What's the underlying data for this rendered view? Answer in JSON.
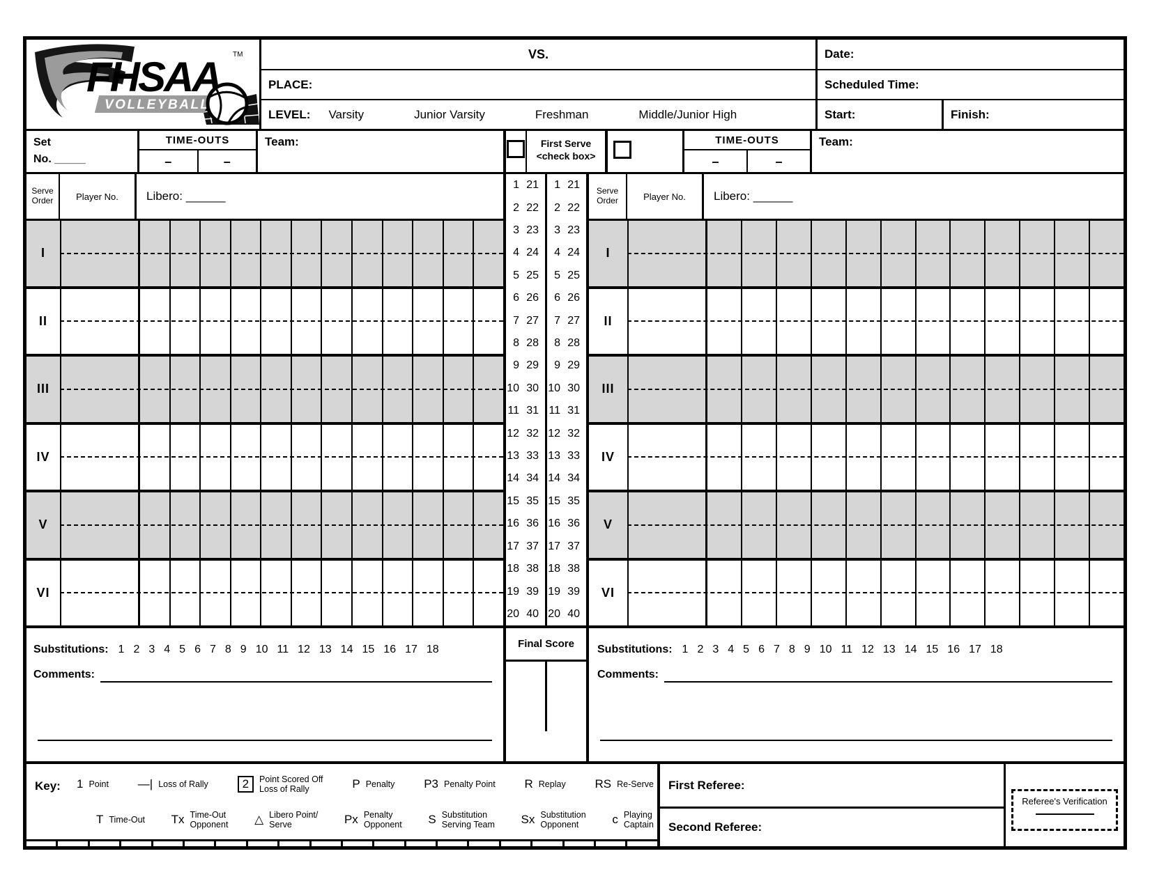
{
  "header": {
    "logo_brand": "FHSAA",
    "logo_tm": "TM",
    "logo_sub": "VOLLEYBALL",
    "vs_label": "VS.",
    "place_label": "PLACE:",
    "level_label": "LEVEL:",
    "level_options": [
      "Varsity",
      "Junior Varsity",
      "Freshman",
      "Middle/Junior High"
    ],
    "date_label": "Date:",
    "scheduled_time_label": "Scheduled Time:",
    "start_label": "Start:",
    "finish_label": "Finish:"
  },
  "team_panel": {
    "set_label": "Set",
    "set_no_label": "No. _____",
    "timeouts_label": "TIME-OUTS",
    "timeout_placeholder": "–",
    "team_label": "Team:",
    "serve_order_line1": "Serve",
    "serve_order_line2": "Order",
    "player_no_label": "Player No.",
    "libero_label": "Libero: ______",
    "serve_rows": [
      "I",
      "II",
      "III",
      "IV",
      "V",
      "VI"
    ],
    "grid_columns_per_row": 12,
    "substitutions_label": "Substitutions:",
    "substitution_numbers": [
      "1",
      "2",
      "3",
      "4",
      "5",
      "6",
      "7",
      "8",
      "9",
      "10",
      "11",
      "12",
      "13",
      "14",
      "15",
      "16",
      "17",
      "18"
    ],
    "comments_label": "Comments:"
  },
  "center_column": {
    "first_serve_line1": "First Serve",
    "first_serve_line2": "<check box>",
    "score_rows": [
      [
        1,
        21
      ],
      [
        2,
        22
      ],
      [
        3,
        23
      ],
      [
        4,
        24
      ],
      [
        5,
        25
      ],
      [
        6,
        26
      ],
      [
        7,
        27
      ],
      [
        8,
        28
      ],
      [
        9,
        29
      ],
      [
        10,
        30
      ],
      [
        11,
        31
      ],
      [
        12,
        32
      ],
      [
        13,
        33
      ],
      [
        14,
        34
      ],
      [
        15,
        35
      ],
      [
        16,
        36
      ],
      [
        17,
        37
      ],
      [
        18,
        38
      ],
      [
        19,
        39
      ],
      [
        20,
        40
      ]
    ],
    "final_score_label": "Final Score"
  },
  "key": {
    "label": "Key:",
    "row1": [
      {
        "symbol": "1",
        "desc": [
          "Point"
        ]
      },
      {
        "symbol": "—|",
        "desc": [
          "Loss of Rally"
        ]
      },
      {
        "symbol": "2",
        "boxed": true,
        "desc": [
          "Point Scored Off",
          "Loss of Rally"
        ]
      },
      {
        "symbol": "P",
        "desc": [
          "Penalty"
        ]
      },
      {
        "symbol": "P3",
        "desc": [
          "Penalty Point"
        ]
      },
      {
        "symbol": "R",
        "desc": [
          "Replay"
        ]
      },
      {
        "symbol": "RS",
        "desc": [
          "Re-Serve"
        ]
      }
    ],
    "row2": [
      {
        "symbol": "T",
        "desc": [
          "Time-Out"
        ]
      },
      {
        "symbol": "Tx",
        "desc": [
          "Time-Out",
          "Opponent"
        ]
      },
      {
        "symbol": "△",
        "desc": [
          "Libero Point/",
          "Serve"
        ]
      },
      {
        "symbol": "Px",
        "desc": [
          "Penalty",
          "Opponent"
        ]
      },
      {
        "symbol": "S",
        "desc": [
          "Substitution",
          "Serving Team"
        ]
      },
      {
        "symbol": "Sx",
        "desc": [
          "Substitution",
          "Opponent"
        ]
      },
      {
        "symbol": "c",
        "desc": [
          "Playing",
          "Captain"
        ]
      }
    ]
  },
  "referees": {
    "first_label": "First Referee:",
    "second_label": "Second Referee:",
    "verification_label": "Referee's Verification"
  },
  "colors": {
    "shaded_row": "#d6d6d6",
    "ink": "#000000",
    "logo_gray": "#9b9b9b"
  }
}
